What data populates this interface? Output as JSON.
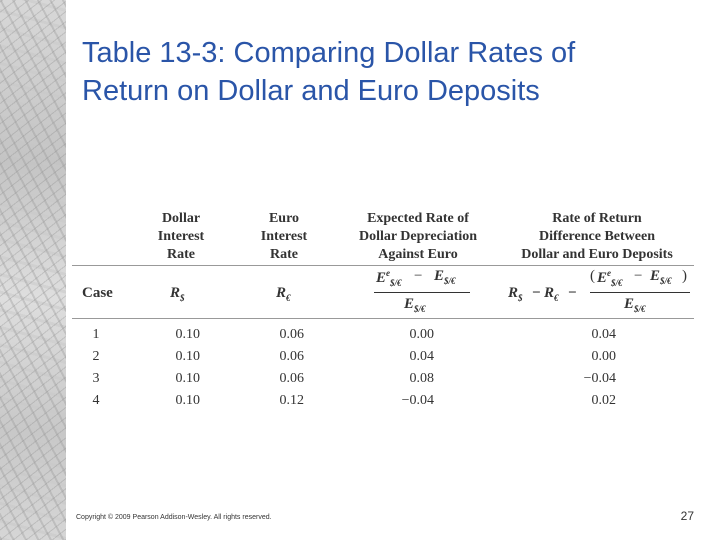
{
  "slide": {
    "title_line1": "Table 13-3: Comparing Dollar Rates of",
    "title_line2": "Return on Dollar and Euro Deposits",
    "footer": "Copyright © 2009 Pearson Addison-Wesley. All rights reserved.",
    "page_number": "27"
  },
  "table": {
    "headers": {
      "dollar": [
        "Dollar",
        "Interest",
        "Rate"
      ],
      "euro": [
        "Euro",
        "Interest",
        "Rate"
      ],
      "depreciation": [
        "Expected Rate of",
        "Dollar Depreciation",
        "Against Euro"
      ],
      "difference": [
        "Rate of Return",
        "Difference Between",
        "Dollar and Euro Deposits"
      ]
    },
    "symbols": {
      "case": "Case",
      "r_dollar": "R",
      "dollar_sub": "$",
      "r_euro": "R",
      "euro_sub": "€",
      "e_letter": "E",
      "e_sup": "e",
      "e_sub": "$/€",
      "minus": "−",
      "paren_open": "(",
      "paren_close": ")"
    },
    "columns": {
      "case": [
        "1",
        "2",
        "3",
        "4"
      ],
      "dollar": [
        "0.10",
        "0.10",
        "0.10",
        "0.10"
      ],
      "euro": [
        "0.06",
        "0.06",
        "0.06",
        "0.12"
      ],
      "depreciation": [
        "0.00",
        "0.04",
        "0.08",
        "−0.04"
      ],
      "difference": [
        "0.04",
        "0.00",
        "−0.04",
        "0.02"
      ]
    }
  }
}
